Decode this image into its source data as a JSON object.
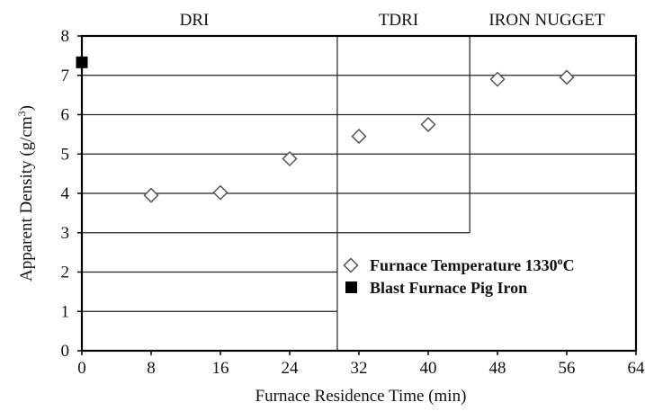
{
  "chart_data": {
    "type": "scatter",
    "title": "",
    "xlabel": "Furnace Residence Time  (min)",
    "ylabel_main": "Apparent  Density  (g/cm",
    "ylabel_sup": "3",
    "ylabel_end": ")",
    "xlim": [
      0,
      64
    ],
    "ylim": [
      0,
      8
    ],
    "xticks": [
      "0",
      "8",
      "16",
      "24",
      "32",
      "40",
      "48",
      "56",
      "64"
    ],
    "yticks": [
      "0",
      "1",
      "2",
      "3",
      "4",
      "5",
      "6",
      "7",
      "8"
    ],
    "regions": [
      {
        "label": "DRI",
        "x_start": 0,
        "x_end": 29.5
      },
      {
        "label": "TDRI",
        "x_start": 29.5,
        "x_end": 44.8
      },
      {
        "label": "IRON NUGGET",
        "x_start": 44.8,
        "x_end": 64
      }
    ],
    "grid": "horizontal, clipped by region boundaries",
    "series": [
      {
        "name": "Furnace Temperature 1330°C",
        "marker": "open-diamond",
        "x": [
          8,
          16,
          24,
          32,
          40,
          48,
          56
        ],
        "y": [
          3.95,
          4.02,
          4.88,
          5.45,
          5.75,
          6.9,
          6.95
        ]
      },
      {
        "name": "Blast Furnace Pig Iron",
        "marker": "filled-square",
        "x": [
          0
        ],
        "y": [
          7.33
        ]
      }
    ],
    "legend": {
      "placement": "lower-right",
      "entries": [
        {
          "prefix": "Furnace Temperature 1330",
          "sup": "o",
          "suffix": "C"
        },
        {
          "prefix": "Blast Furnace Pig Iron",
          "sup": "",
          "suffix": ""
        }
      ]
    }
  }
}
